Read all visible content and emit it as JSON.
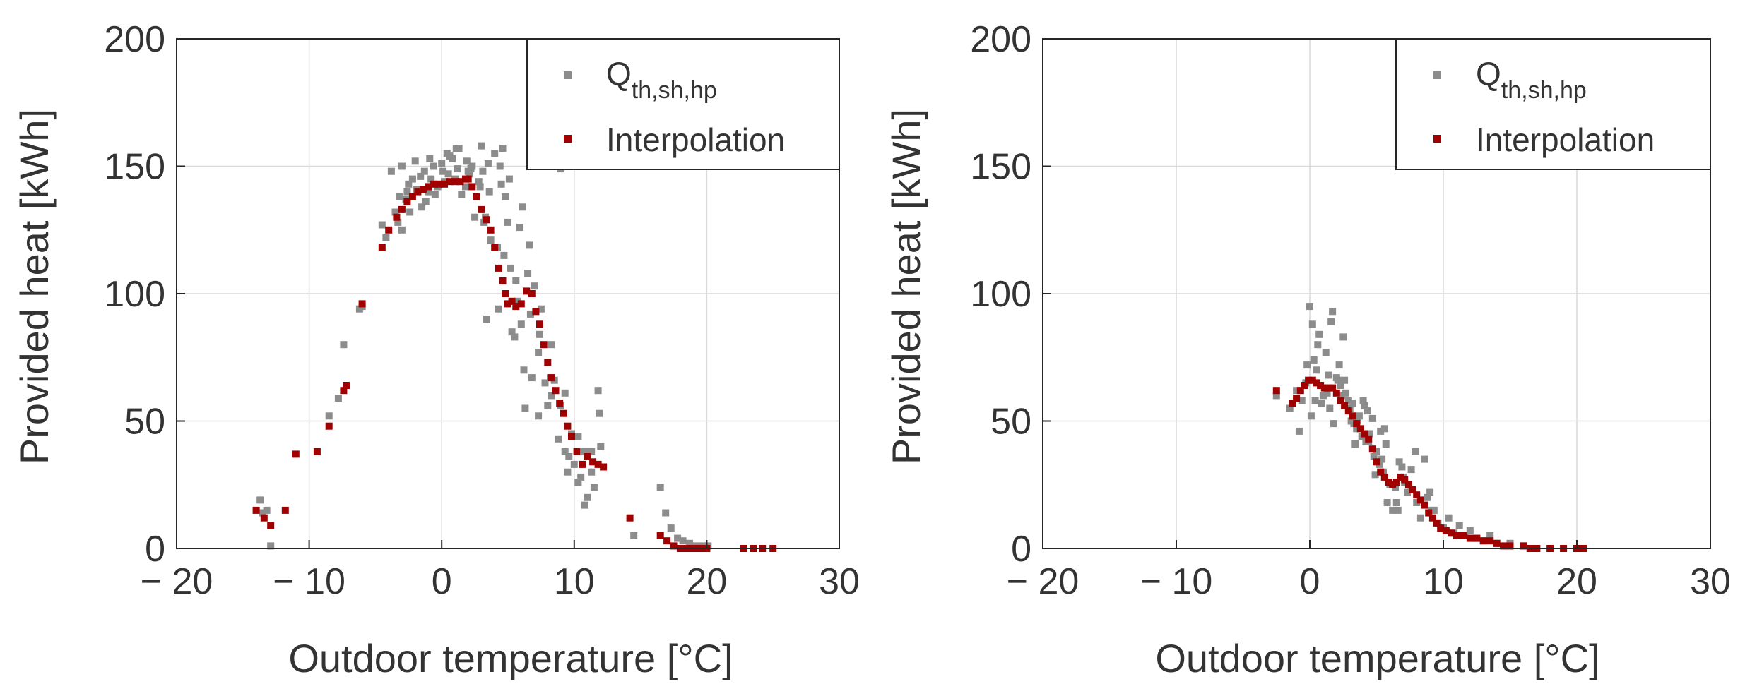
{
  "figure": {
    "colors": {
      "raw": "#8c8c8c",
      "interp": "#a00000",
      "axis": "#262626",
      "grid": "#d9d9d9",
      "text": "#333333"
    }
  },
  "chart_data": [
    {
      "type": "scatter",
      "title": "",
      "xlabel": "Outdoor temperature [°C]",
      "ylabel": "Provided heat [kWh]",
      "xlim": [
        -20,
        30
      ],
      "ylim": [
        0,
        200
      ],
      "xticks": [
        -20,
        -10,
        0,
        10,
        20,
        30
      ],
      "xtick_labels": [
        "− 20",
        "− 10",
        "0",
        "10",
        "20",
        "30"
      ],
      "yticks": [
        0,
        50,
        100,
        150,
        200
      ],
      "ytick_labels": [
        "0",
        "50",
        "100",
        "150",
        "200"
      ],
      "grid": true,
      "legend": {
        "position": "top-right",
        "entries": [
          {
            "label_base": "Q",
            "label_sub": "th,sh,hp",
            "series": "raw"
          },
          {
            "label_base": "Interpolation",
            "label_sub": "",
            "series": "interp"
          }
        ]
      },
      "series": [
        {
          "name": "Q_th,sh,hp",
          "key": "raw",
          "x": [
            -13.7,
            -13.2,
            -12.9,
            -13.5,
            -7.4,
            -7.8,
            -8.5,
            -6.2,
            -6.0,
            -4.5,
            -4.2,
            -3.8,
            -3.5,
            -3.3,
            -3.0,
            -2.7,
            -2.5,
            -2.2,
            -2.0,
            -1.7,
            -1.5,
            -1.3,
            -1.0,
            -0.8,
            -0.5,
            -0.3,
            0.0,
            0.2,
            0.5,
            0.8,
            1.0,
            1.3,
            1.5,
            1.8,
            2.0,
            2.3,
            2.5,
            2.8,
            3.0,
            3.2,
            3.5,
            3.7,
            4.0,
            4.2,
            4.5,
            4.7,
            5.0,
            5.2,
            5.5,
            5.7,
            6.0,
            6.2,
            6.5,
            6.7,
            7.0,
            7.3,
            7.5,
            7.8,
            8.0,
            8.3,
            8.5,
            8.8,
            9.0,
            9.3,
            9.5,
            9.8,
            10.0,
            10.3,
            10.5,
            10.8,
            11.0,
            11.3,
            11.5,
            11.8,
            12.0,
            -3.2,
            -2.4,
            -1.6,
            -0.6,
            0.4,
            1.2,
            2.1,
            2.9,
            3.6,
            4.4,
            5.1,
            5.9,
            6.6,
            7.4,
            8.2,
            -3.0,
            -1.9,
            -0.9,
            0.1,
            1.1,
            2.2,
            3.3,
            4.3,
            5.3,
            6.3,
            7.3,
            8.3,
            9.3,
            10.3,
            11.3,
            -2.6,
            -1.2,
            0.6,
            1.9,
            3.1,
            4.6,
            5.6,
            6.8,
            9.6,
            10.8,
            3.4,
            4.8,
            6.1,
            9.0,
            11.9,
            14.5,
            16.5,
            16.9,
            17.3,
            17.8,
            18.2,
            18.7,
            19.2,
            19.7,
            20.1
          ],
          "y": [
            19,
            15,
            1,
            14,
            80,
            59,
            52,
            94,
            95,
            127,
            122,
            148,
            132,
            128,
            150,
            137,
            143,
            145,
            152,
            141,
            134,
            148,
            140,
            145,
            139,
            142,
            151,
            144,
            147,
            153,
            145,
            157,
            139,
            142,
            148,
            150,
            130,
            144,
            158,
            128,
            151,
            121,
            155,
            118,
            143,
            115,
            128,
            110,
            83,
            97,
            88,
            70,
            108,
            92,
            103,
            77,
            94,
            65,
            56,
            60,
            66,
            43,
            56,
            38,
            30,
            45,
            33,
            26,
            28,
            38,
            20,
            30,
            24,
            62,
            40,
            138,
            132,
            146,
            150,
            155,
            149,
            147,
            142,
            140,
            150,
            145,
            126,
            119,
            84,
            67,
            125,
            141,
            153,
            148,
            157,
            149,
            130,
            94,
            85,
            55,
            52,
            80,
            61,
            44,
            38,
            140,
            136,
            154,
            152,
            148,
            157,
            105,
            67,
            36,
            17,
            90,
            138,
            134,
            149,
            53,
            5,
            24,
            14,
            8,
            4,
            3,
            2,
            1,
            1,
            1
          ],
          "color_key": "raw"
        },
        {
          "name": "Interpolation",
          "key": "interp",
          "x": [
            -14.0,
            -13.4,
            -12.9,
            -11.8,
            -11.0,
            -9.4,
            -8.5,
            -7.4,
            -7.2,
            -6.0,
            -4.5,
            -4.0,
            -3.4,
            -3.0,
            -2.6,
            -2.2,
            -1.8,
            -1.4,
            -1.0,
            -0.6,
            -0.2,
            0.2,
            0.6,
            1.0,
            1.4,
            1.8,
            2.0,
            2.3,
            2.6,
            3.0,
            3.4,
            3.7,
            4.0,
            4.3,
            4.6,
            4.8,
            5.0,
            5.3,
            5.6,
            6.0,
            6.4,
            6.8,
            7.1,
            7.4,
            7.7,
            8.0,
            8.3,
            8.6,
            8.9,
            9.2,
            9.5,
            9.8,
            10.2,
            10.6,
            11.0,
            11.4,
            11.8,
            12.2,
            14.2,
            16.5,
            17.0,
            17.5,
            18.0,
            18.5,
            19.0,
            19.5,
            20.0,
            22.8,
            23.5,
            24.2,
            25.0
          ],
          "y": [
            15,
            12,
            9,
            15,
            37,
            38,
            48,
            62,
            64,
            96,
            118,
            125,
            130,
            133,
            136,
            138,
            140,
            141,
            142,
            143,
            143,
            143,
            144,
            144,
            144,
            145,
            145,
            142,
            138,
            133,
            129,
            125,
            118,
            110,
            105,
            100,
            96,
            97,
            95,
            96,
            101,
            100,
            93,
            88,
            80,
            73,
            67,
            62,
            57,
            53,
            48,
            44,
            38,
            33,
            36,
            34,
            33,
            32,
            12,
            5,
            3,
            1,
            0,
            0,
            0,
            0,
            0,
            0,
            0,
            0,
            0
          ],
          "color_key": "interp"
        }
      ]
    },
    {
      "type": "scatter",
      "title": "",
      "xlabel": "Outdoor temperature [°C]",
      "ylabel": "Provided heat [kWh]",
      "xlim": [
        -20,
        30
      ],
      "ylim": [
        0,
        200
      ],
      "xticks": [
        -20,
        -10,
        0,
        10,
        20,
        30
      ],
      "xtick_labels": [
        "− 20",
        "− 10",
        "0",
        "10",
        "20",
        "30"
      ],
      "yticks": [
        0,
        50,
        100,
        150,
        200
      ],
      "ytick_labels": [
        "0",
        "50",
        "100",
        "150",
        "200"
      ],
      "grid": true,
      "legend": {
        "position": "top-right",
        "entries": [
          {
            "label_base": "Q",
            "label_sub": "th,sh,hp",
            "series": "raw"
          },
          {
            "label_base": "Interpolation",
            "label_sub": "",
            "series": "interp"
          }
        ]
      },
      "series": [
        {
          "name": "Q_th,sh,hp",
          "key": "raw",
          "x": [
            -2.5,
            -1.5,
            -1.0,
            -0.6,
            -0.3,
            0.0,
            0.2,
            0.5,
            0.7,
            1.0,
            1.2,
            1.5,
            1.7,
            2.0,
            2.2,
            2.5,
            2.7,
            3.0,
            3.2,
            3.5,
            3.7,
            4.0,
            4.2,
            4.5,
            4.7,
            5.0,
            5.2,
            5.5,
            5.7,
            6.0,
            6.2,
            6.5,
            6.7,
            7.0,
            7.3,
            7.6,
            8.0,
            8.3,
            8.6,
            9.0,
            9.3,
            9.6,
            10.0,
            10.4,
            10.8,
            11.2,
            11.6,
            12.0,
            12.5,
            13.0,
            13.5,
            14.0,
            15.0,
            16.0,
            17.0,
            18.0,
            -0.8,
            0.1,
            0.9,
            1.8,
            2.6,
            3.4,
            4.1,
            4.9,
            5.6,
            6.4,
            7.1,
            7.9,
            8.8,
            0.3,
            1.3,
            2.3,
            3.3,
            4.3,
            5.3,
            -0.2,
            0.6,
            1.6,
            2.4,
            3.1,
            3.9,
            4.8,
            5.8,
            6.9,
            9.1,
            -0.4,
            0.4,
            1.4,
            2.1,
            2.9,
            3.6,
            4.4,
            5.4,
            6.6,
            7.6
          ],
          "y": [
            60,
            55,
            62,
            58,
            65,
            95,
            88,
            70,
            84,
            60,
            77,
            55,
            93,
            67,
            72,
            83,
            61,
            55,
            57,
            47,
            52,
            58,
            42,
            45,
            51,
            38,
            33,
            30,
            41,
            25,
            15,
            18,
            34,
            28,
            22,
            31,
            18,
            12,
            35,
            22,
            15,
            10,
            8,
            12,
            6,
            9,
            5,
            7,
            4,
            3,
            5,
            2,
            2,
            1,
            0,
            0,
            46,
            52,
            57,
            49,
            66,
            41,
            56,
            29,
            47,
            24,
            26,
            38,
            20,
            74,
            61,
            64,
            49,
            54,
            46,
            72,
            80,
            89,
            60,
            50,
            44,
            36,
            18,
            32,
            15,
            64,
            58,
            68,
            66,
            58,
            50,
            42,
            35,
            15,
            23
          ],
          "color_key": "raw"
        },
        {
          "name": "Interpolation",
          "key": "interp",
          "x": [
            -2.5,
            -1.3,
            -1.0,
            -0.7,
            -0.4,
            -0.1,
            0.2,
            0.5,
            0.8,
            1.1,
            1.4,
            1.7,
            2.0,
            2.3,
            2.6,
            2.9,
            3.2,
            3.5,
            3.8,
            4.1,
            4.4,
            4.7,
            5.0,
            5.3,
            5.6,
            5.9,
            6.2,
            6.5,
            6.8,
            7.1,
            7.4,
            7.7,
            8.0,
            8.3,
            8.6,
            8.9,
            9.2,
            9.5,
            9.8,
            10.2,
            10.6,
            11.0,
            11.5,
            12.0,
            12.5,
            13.0,
            13.5,
            14.0,
            14.5,
            15.0,
            16.0,
            16.5,
            17.0,
            18.0,
            19.0,
            20.0,
            20.5
          ],
          "y": [
            62,
            57,
            59,
            62,
            64,
            66,
            66,
            65,
            64,
            63,
            63,
            63,
            61,
            58,
            56,
            54,
            52,
            49,
            47,
            45,
            43,
            39,
            34,
            30,
            28,
            26,
            25,
            26,
            28,
            27,
            25,
            23,
            21,
            19,
            17,
            14,
            12,
            10,
            8,
            7,
            6,
            5,
            5,
            4,
            4,
            3,
            3,
            2,
            1,
            1,
            1,
            0,
            0,
            0,
            0,
            0,
            0
          ],
          "color_key": "interp"
        }
      ]
    }
  ]
}
